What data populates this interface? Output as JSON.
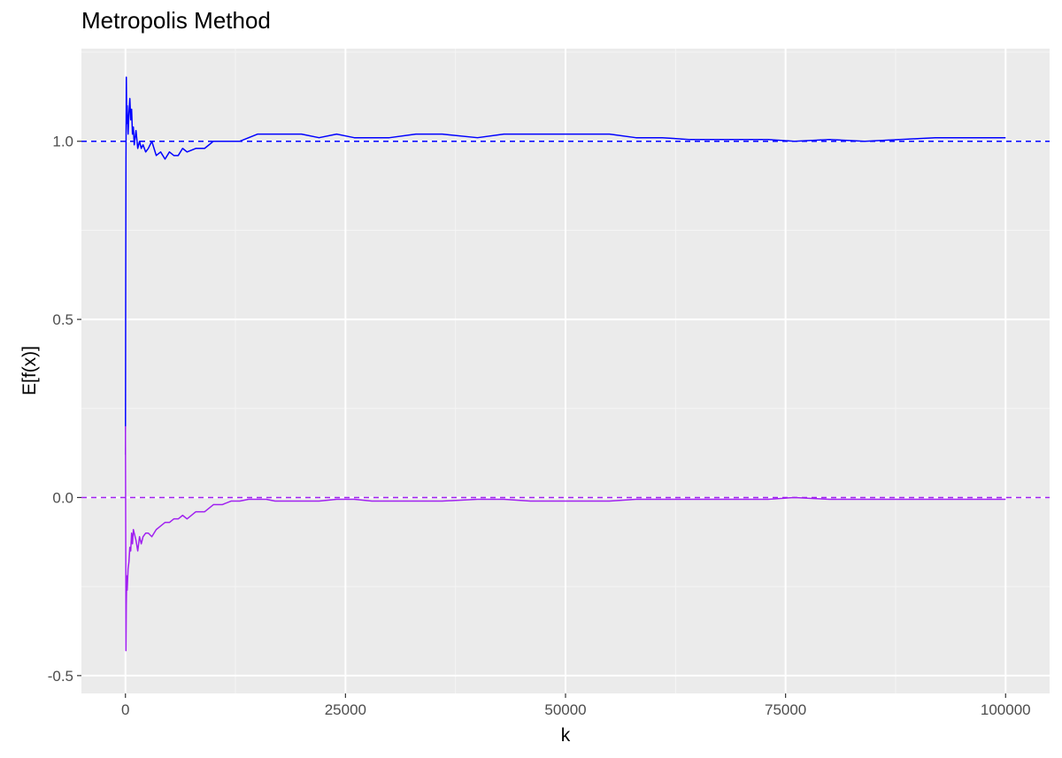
{
  "chart_data": {
    "type": "line",
    "title": "Metropolis Method",
    "xlabel": "k",
    "ylabel": "E[f(x)]",
    "xlim": [
      -5000,
      105000
    ],
    "ylim": [
      -0.55,
      1.26
    ],
    "x_ticks": [
      0,
      25000,
      50000,
      75000,
      100000
    ],
    "x_tick_labels": [
      "0",
      "25000",
      "50000",
      "75000",
      "100000"
    ],
    "y_ticks": [
      -0.5,
      0.0,
      0.5,
      1.0
    ],
    "y_tick_labels": [
      "-0.5",
      "0.0",
      "0.5",
      "1.0"
    ],
    "grid": true,
    "legend": "none",
    "reference_lines": [
      {
        "y": 1.0,
        "color": "#0000ff",
        "style": "dashed"
      },
      {
        "y": 0.0,
        "color": "#a020f0",
        "style": "dashed"
      }
    ],
    "series": [
      {
        "color": "#0000ff",
        "x": [
          0,
          30,
          60,
          100,
          150,
          200,
          300,
          400,
          500,
          600,
          700,
          800,
          900,
          1000,
          1200,
          1400,
          1600,
          1800,
          2000,
          2300,
          2600,
          3000,
          3500,
          4000,
          4500,
          5000,
          5500,
          6000,
          6500,
          7000,
          8000,
          9000,
          10000,
          11000,
          12000,
          13000,
          14000,
          15000,
          16000,
          17000,
          18000,
          20000,
          22000,
          24000,
          26000,
          28000,
          30000,
          33000,
          36000,
          40000,
          43000,
          46000,
          49000,
          52000,
          55000,
          58000,
          61000,
          64000,
          67000,
          70000,
          73000,
          76000,
          80000,
          84000,
          88000,
          92000,
          96000,
          100000
        ],
        "values": [
          0.12,
          0.6,
          0.95,
          1.18,
          1.05,
          1.1,
          1.02,
          1.08,
          1.12,
          1.06,
          1.09,
          1.02,
          1.04,
          0.99,
          1.03,
          0.98,
          1.0,
          0.98,
          0.99,
          0.97,
          0.98,
          1.0,
          0.96,
          0.97,
          0.95,
          0.97,
          0.96,
          0.96,
          0.98,
          0.97,
          0.98,
          0.98,
          1.0,
          1.0,
          1.0,
          1.0,
          1.01,
          1.02,
          1.02,
          1.02,
          1.02,
          1.02,
          1.01,
          1.02,
          1.01,
          1.01,
          1.01,
          1.02,
          1.02,
          1.01,
          1.02,
          1.02,
          1.02,
          1.02,
          1.02,
          1.01,
          1.01,
          1.005,
          1.005,
          1.005,
          1.005,
          1.0,
          1.005,
          1.0,
          1.005,
          1.01,
          1.01,
          1.01
        ]
      },
      {
        "color": "#a020f0",
        "x": [
          0,
          30,
          60,
          100,
          150,
          200,
          300,
          400,
          500,
          600,
          700,
          800,
          900,
          1000,
          1200,
          1400,
          1600,
          1800,
          2000,
          2300,
          2600,
          3000,
          3500,
          4000,
          4500,
          5000,
          5500,
          6000,
          6500,
          7000,
          8000,
          9000,
          10000,
          11000,
          12000,
          13000,
          14000,
          15000,
          16000,
          17000,
          18000,
          20000,
          22000,
          24000,
          26000,
          28000,
          30000,
          33000,
          36000,
          40000,
          43000,
          46000,
          49000,
          52000,
          55000,
          58000,
          61000,
          64000,
          67000,
          70000,
          73000,
          76000,
          80000,
          84000,
          88000,
          92000,
          96000,
          100000
        ],
        "values": [
          0.2,
          -0.1,
          -0.43,
          -0.3,
          -0.22,
          -0.26,
          -0.2,
          -0.18,
          -0.14,
          -0.15,
          -0.1,
          -0.13,
          -0.09,
          -0.1,
          -0.12,
          -0.15,
          -0.11,
          -0.13,
          -0.11,
          -0.1,
          -0.1,
          -0.11,
          -0.09,
          -0.08,
          -0.07,
          -0.07,
          -0.06,
          -0.06,
          -0.05,
          -0.06,
          -0.04,
          -0.04,
          -0.02,
          -0.02,
          -0.01,
          -0.01,
          -0.005,
          -0.005,
          -0.005,
          -0.01,
          -0.01,
          -0.01,
          -0.01,
          -0.005,
          -0.005,
          -0.01,
          -0.01,
          -0.01,
          -0.01,
          -0.005,
          -0.005,
          -0.01,
          -0.01,
          -0.01,
          -0.01,
          -0.005,
          -0.005,
          -0.005,
          -0.005,
          -0.005,
          -0.005,
          0.0,
          -0.005,
          -0.005,
          -0.005,
          -0.005,
          -0.005,
          -0.005
        ]
      }
    ]
  }
}
